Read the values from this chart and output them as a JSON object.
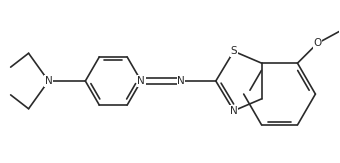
{
  "bg_color": "#ffffff",
  "line_color": "#2a2a2a",
  "line_width": 1.2,
  "font_size": 7.5,
  "fig_width": 3.4,
  "fig_height": 1.63,
  "dpi": 100,
  "xlim": [
    0,
    340
  ],
  "ylim": [
    0,
    163
  ]
}
